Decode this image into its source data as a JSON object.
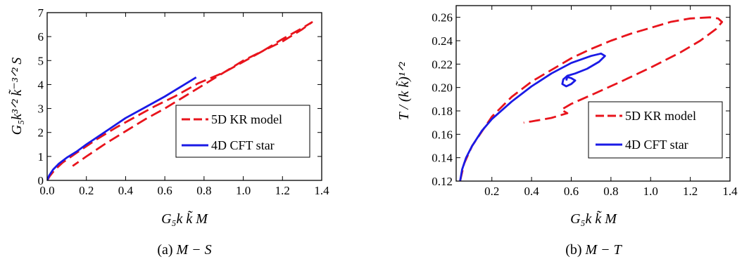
{
  "chart_data": [
    {
      "type": "line",
      "caption": "(a) M − S",
      "caption_prefix": "(a) ",
      "caption_math": "M − S",
      "xlabel": "G₅k k̃ M",
      "ylabel": "G₅k³ᐟ² k̃⁻³ᐟ² S",
      "xlim": [
        0,
        1.4
      ],
      "ylim": [
        0,
        7
      ],
      "xticks": [
        "0.0",
        "0.2",
        "0.4",
        "0.6",
        "0.8",
        "1.0",
        "1.2",
        "1.4"
      ],
      "yticks": [
        "0",
        "1",
        "2",
        "3",
        "4",
        "5",
        "6",
        "7"
      ],
      "grid": false,
      "legend_position": "center-right",
      "series": [
        {
          "name": "5D KR model",
          "style": "dashed",
          "color": "#e8141c",
          "points": [
            [
              0.0,
              0.0
            ],
            [
              0.015,
              0.2
            ],
            [
              0.04,
              0.45
            ],
            [
              0.08,
              0.75
            ],
            [
              0.15,
              1.15
            ],
            [
              0.25,
              1.7
            ],
            [
              0.35,
              2.2
            ],
            [
              0.45,
              2.65
            ],
            [
              0.55,
              3.1
            ],
            [
              0.65,
              3.5
            ],
            [
              0.77,
              4.05
            ],
            [
              0.9,
              4.5
            ],
            [
              1.0,
              4.95
            ],
            [
              1.1,
              5.4
            ],
            [
              1.2,
              5.8
            ],
            [
              1.3,
              6.3
            ],
            [
              1.35,
              6.6
            ],
            [
              1.3,
              6.35
            ],
            [
              1.2,
              5.9
            ],
            [
              1.1,
              5.4
            ],
            [
              1.0,
              5.0
            ],
            [
              0.9,
              4.5
            ],
            [
              0.8,
              4.0
            ],
            [
              0.7,
              3.5
            ],
            [
              0.6,
              3.0
            ],
            [
              0.5,
              2.55
            ],
            [
              0.4,
              2.05
            ],
            [
              0.3,
              1.55
            ],
            [
              0.2,
              1.0
            ],
            [
              0.13,
              0.6
            ]
          ]
        },
        {
          "name": "4D CFT star",
          "style": "solid",
          "color": "#1a1ae6",
          "points": [
            [
              0.0,
              0.0
            ],
            [
              0.01,
              0.2
            ],
            [
              0.03,
              0.45
            ],
            [
              0.06,
              0.7
            ],
            [
              0.1,
              0.95
            ],
            [
              0.15,
              1.2
            ],
            [
              0.2,
              1.5
            ],
            [
              0.3,
              2.05
            ],
            [
              0.4,
              2.6
            ],
            [
              0.5,
              3.05
            ],
            [
              0.6,
              3.5
            ],
            [
              0.7,
              4.0
            ],
            [
              0.76,
              4.3
            ]
          ]
        }
      ]
    },
    {
      "type": "line",
      "caption": "(b) M − T",
      "caption_prefix": "(b) ",
      "caption_math": "M − T",
      "xlabel": "G₅k k̃ M",
      "ylabel": "T / (k k̃)¹ᐟ²",
      "xlim": [
        0.02,
        1.4
      ],
      "ylim": [
        0.12,
        0.27
      ],
      "xticks": [
        "0.2",
        "0.4",
        "0.6",
        "0.8",
        "1.0",
        "1.2",
        "1.4"
      ],
      "yticks": [
        "0.12",
        "0.14",
        "0.16",
        "0.18",
        "0.20",
        "0.22",
        "0.24",
        "0.26"
      ],
      "grid": false,
      "legend_position": "center-right",
      "series": [
        {
          "name": "5D KR model",
          "style": "dashed",
          "color": "#e8141c",
          "points": [
            [
              0.04,
              0.12
            ],
            [
              0.06,
              0.135
            ],
            [
              0.1,
              0.15
            ],
            [
              0.2,
              0.175
            ],
            [
              0.3,
              0.192
            ],
            [
              0.4,
              0.205
            ],
            [
              0.5,
              0.215
            ],
            [
              0.6,
              0.225
            ],
            [
              0.7,
              0.233
            ],
            [
              0.8,
              0.24
            ],
            [
              0.9,
              0.246
            ],
            [
              1.0,
              0.251
            ],
            [
              1.1,
              0.256
            ],
            [
              1.2,
              0.259
            ],
            [
              1.3,
              0.26
            ],
            [
              1.34,
              0.259
            ],
            [
              1.36,
              0.256
            ],
            [
              1.33,
              0.25
            ],
            [
              1.25,
              0.24
            ],
            [
              1.15,
              0.23
            ],
            [
              1.0,
              0.217
            ],
            [
              0.85,
              0.205
            ],
            [
              0.72,
              0.195
            ],
            [
              0.6,
              0.186
            ],
            [
              0.55,
              0.181
            ],
            [
              0.58,
              0.178
            ],
            [
              0.5,
              0.174
            ],
            [
              0.4,
              0.171
            ],
            [
              0.36,
              0.17
            ]
          ]
        },
        {
          "name": "4D CFT star",
          "style": "solid",
          "color": "#1a1ae6",
          "points": [
            [
              0.04,
              0.12
            ],
            [
              0.05,
              0.13
            ],
            [
              0.07,
              0.14
            ],
            [
              0.1,
              0.15
            ],
            [
              0.15,
              0.163
            ],
            [
              0.2,
              0.173
            ],
            [
              0.3,
              0.188
            ],
            [
              0.4,
              0.201
            ],
            [
              0.5,
              0.212
            ],
            [
              0.6,
              0.221
            ],
            [
              0.7,
              0.227
            ],
            [
              0.75,
              0.229
            ],
            [
              0.77,
              0.227
            ],
            [
              0.74,
              0.222
            ],
            [
              0.68,
              0.216
            ],
            [
              0.62,
              0.212
            ],
            [
              0.58,
              0.21
            ],
            [
              0.56,
              0.207
            ],
            [
              0.555,
              0.203
            ],
            [
              0.575,
              0.201
            ],
            [
              0.6,
              0.203
            ],
            [
              0.62,
              0.206
            ],
            [
              0.6,
              0.208
            ],
            [
              0.58,
              0.209
            ],
            [
              0.575,
              0.206
            ]
          ]
        }
      ]
    }
  ]
}
